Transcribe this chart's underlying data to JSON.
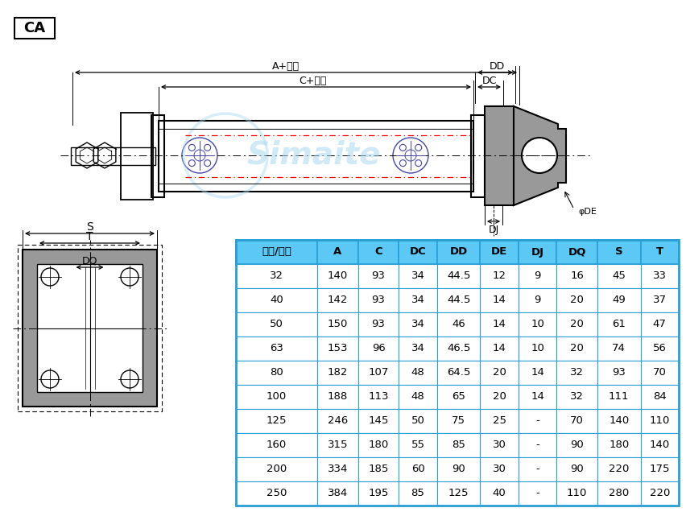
{
  "title": "CA",
  "table_headers": [
    "内径/符号",
    "A",
    "C",
    "DC",
    "DD",
    "DE",
    "DJ",
    "DQ",
    "S",
    "T"
  ],
  "table_data": [
    [
      "32",
      "140",
      "93",
      "34",
      "44.5",
      "12",
      "9",
      "16",
      "45",
      "33"
    ],
    [
      "40",
      "142",
      "93",
      "34",
      "44.5",
      "14",
      "9",
      "20",
      "49",
      "37"
    ],
    [
      "50",
      "150",
      "93",
      "34",
      "46",
      "14",
      "10",
      "20",
      "61",
      "47"
    ],
    [
      "63",
      "153",
      "96",
      "34",
      "46.5",
      "14",
      "10",
      "20",
      "74",
      "56"
    ],
    [
      "80",
      "182",
      "107",
      "48",
      "64.5",
      "20",
      "14",
      "32",
      "93",
      "70"
    ],
    [
      "100",
      "188",
      "113",
      "48",
      "65",
      "20",
      "14",
      "32",
      "111",
      "84"
    ],
    [
      "125",
      "246",
      "145",
      "50",
      "75",
      "25",
      "-",
      "70",
      "140",
      "110"
    ],
    [
      "160",
      "315",
      "180",
      "55",
      "85",
      "30",
      "-",
      "90",
      "180",
      "140"
    ],
    [
      "200",
      "334",
      "185",
      "60",
      "90",
      "30",
      "-",
      "90",
      "220",
      "175"
    ],
    [
      "250",
      "384",
      "195",
      "85",
      "125",
      "40",
      "-",
      "110",
      "280",
      "220"
    ]
  ],
  "header_bg": "#5bc8f5",
  "header_text": "#000000",
  "table_border": "#2a9fd6",
  "bg_color": "#ffffff",
  "label_color": "#000000",
  "drawing_line_color": "#000000",
  "red_dash_color": "#ff0000",
  "gray_fill": "#999999",
  "dark_gray": "#666666",
  "watermark_color": "#a8d8f0",
  "col_widths_ratio": [
    1.6,
    0.8,
    0.8,
    0.75,
    0.85,
    0.75,
    0.75,
    0.8,
    0.85,
    0.75
  ]
}
